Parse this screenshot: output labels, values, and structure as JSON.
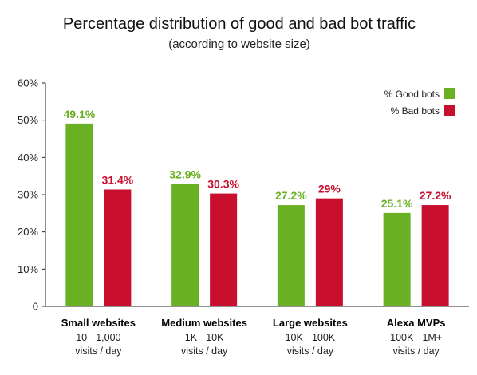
{
  "chart_data": {
    "type": "bar",
    "title": "Percentage distribution of good and bad bot traffic",
    "subtitle": "(according to website size)",
    "categories": [
      {
        "name": "Small websites",
        "range": "10 - 1,000",
        "unit": "visits / day"
      },
      {
        "name": "Medium websites",
        "range": "1K - 10K",
        "unit": "visits / day"
      },
      {
        "name": "Large websites",
        "range": "10K - 100K",
        "unit": "visits / day"
      },
      {
        "name": "Alexa MVPs",
        "range": "100K - 1M+",
        "unit": "visits / day"
      }
    ],
    "series": [
      {
        "name": "% Good bots",
        "color": "#6ab023",
        "values": [
          49.1,
          32.9,
          27.2,
          25.1
        ],
        "labels": [
          "49.1%",
          "32.9%",
          "27.2%",
          "25.1%"
        ]
      },
      {
        "name": "% Bad bots",
        "color": "#c8102e",
        "values": [
          31.4,
          30.3,
          29,
          27.2
        ],
        "labels": [
          "31.4%",
          "30.3%",
          "29%",
          "27.2%"
        ]
      }
    ],
    "ylim": [
      0,
      60
    ],
    "yticks": [
      {
        "value": 0,
        "label": "0"
      },
      {
        "value": 10,
        "label": "10%"
      },
      {
        "value": 20,
        "label": "20%"
      },
      {
        "value": 30,
        "label": "30%"
      },
      {
        "value": 40,
        "label": "40%"
      },
      {
        "value": 50,
        "label": "50%"
      },
      {
        "value": 60,
        "label": "60%"
      }
    ],
    "legend_position": "top-right",
    "grid": false
  }
}
